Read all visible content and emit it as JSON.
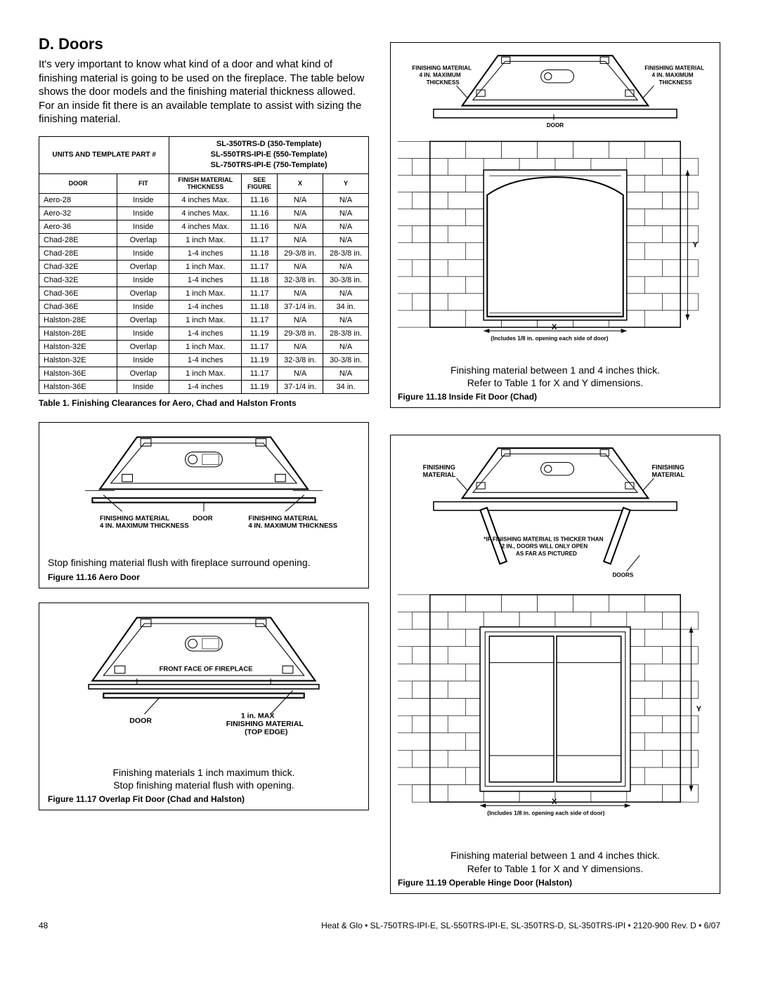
{
  "section": {
    "title": "D.  Doors",
    "paragraph": "It's very important to know what kind of a door and what kind of finishing material is going to be used on the fireplace. The table below shows the door models and the finishing material thickness allowed. For an inside fit there is an available template to assist with sizing the finishing material."
  },
  "table": {
    "hdr_units": "UNITS AND TEMPLATE PART #",
    "templates": [
      "SL-350TRS-D (350-Template)",
      "SL-550TRS-IPI-E (550-Template)",
      "SL-750TRS-IPI-E (750-Template)"
    ],
    "columns": [
      "DOOR",
      "FIT",
      "FINISH MATERIAL THICKNESS",
      "SEE FIGURE",
      "X",
      "Y"
    ],
    "rows": [
      [
        "Aero-28",
        "Inside",
        "4 inches Max.",
        "11.16",
        "N/A",
        "N/A"
      ],
      [
        "Aero-32",
        "Inside",
        "4 inches Max.",
        "11.16",
        "N/A",
        "N/A"
      ],
      [
        "Aero-36",
        "Inside",
        "4 inches Max.",
        "11.16",
        "N/A",
        "N/A"
      ],
      [
        "Chad-28E",
        "Overlap",
        "1 inch Max.",
        "11.17",
        "N/A",
        "N/A"
      ],
      [
        "Chad-28E",
        "Inside",
        "1-4 inches",
        "11.18",
        "29-3/8 in.",
        "28-3/8 in."
      ],
      [
        "Chad-32E",
        "Overlap",
        "1 inch Max.",
        "11.17",
        "N/A",
        "N/A"
      ],
      [
        "Chad-32E",
        "Inside",
        "1-4 inches",
        "11.18",
        "32-3/8 in.",
        "30-3/8 in."
      ],
      [
        "Chad-36E",
        "Overlap",
        "1 inch Max.",
        "11.17",
        "N/A",
        "N/A"
      ],
      [
        "Chad-36E",
        "Inside",
        "1-4 inches",
        "11.18",
        "37-1/4 in.",
        "34 in."
      ],
      [
        "Halston-28E",
        "Overlap",
        "1 inch Max.",
        "11.17",
        "N/A",
        "N/A"
      ],
      [
        "Halston-28E",
        "Inside",
        "1-4 inches",
        "11.19",
        "29-3/8 in.",
        "28-3/8 in."
      ],
      [
        "Halston-32E",
        "Overlap",
        "1 inch Max.",
        "11.17",
        "N/A",
        "N/A"
      ],
      [
        "Halston-32E",
        "Inside",
        "1-4 inches",
        "11.19",
        "32-3/8 in.",
        "30-3/8 in."
      ],
      [
        "Halston-36E",
        "Overlap",
        "1 inch Max.",
        "11.17",
        "N/A",
        "N/A"
      ],
      [
        "Halston-36E",
        "Inside",
        "1-4 inches",
        "11.19",
        "37-1/4 in.",
        "34 in."
      ]
    ],
    "caption": "Table 1.  Finishing Clearances for Aero, Chad and Halston Fronts"
  },
  "fig1116": {
    "labels": {
      "left": "FINISHING MATERIAL\n4 IN. MAXIMUM THICKNESS",
      "door": "DOOR",
      "right": "FINISHING MATERIAL\n4 IN. MAXIMUM THICKNESS"
    },
    "body": "Stop finishing material flush with fireplace surround opening.",
    "caption": "Figure 11.16  Aero Door"
  },
  "fig1117": {
    "labels": {
      "front": "FRONT FACE OF FIREPLACE",
      "door": "DOOR",
      "max": "1 in. MAX\nFINISHING MATERIAL\n(TOP EDGE)"
    },
    "body": "Finishing materials 1 inch maximum thick.\nStop finishing material flush with opening.",
    "caption": "Figure 11.17  Overlap Fit Door (Chad and Halston)"
  },
  "fig1118": {
    "labels": {
      "left": "FINISHING MATERIAL\n4 IN. MAXIMUM\nTHICKNESS",
      "right": "FINISHING MATERIAL\n4 IN. MAXIMUM\nTHICKNESS",
      "door": "DOOR",
      "x": "X",
      "y": "Y",
      "xnote": "(Includes 1/8 in. opening each side of door)"
    },
    "body": "Finishing material between 1 and 4 inches thick.\nRefer to Table 1 for X and Y dimensions.",
    "caption": "Figure 11.18 Inside Fit Door (Chad)"
  },
  "fig1119": {
    "labels": {
      "left": "FINISHING\nMATERIAL",
      "right": "FINISHING\nMATERIAL",
      "note": "*IF FINISHING MATERIAL IS THICKER THAN\n2 IN., DOORS WILL ONLY OPEN\nAS FAR AS PICTURED",
      "doors": "DOORS",
      "x": "X",
      "y": "Y",
      "xnote": "(Includes 1/8 in. opening each side of door)"
    },
    "body": "Finishing material between 1 and 4 inches thick.\nRefer to Table 1 for X and Y dimensions.",
    "caption": "Figure 11.19  Operable Hinge Door (Halston)"
  },
  "footer": {
    "page": "48",
    "text": "Heat & Glo  •  SL-750TRS-IPI-E, SL-550TRS-IPI-E, SL-350TRS-D, SL-350TRS-IPI  •  2120-900  Rev. D  •  6/07"
  }
}
